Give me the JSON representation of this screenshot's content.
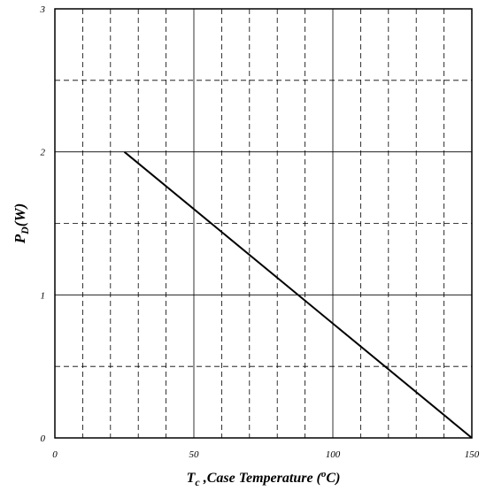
{
  "chart_data": {
    "type": "line",
    "xlabel": {
      "main": "T",
      "sub": "c",
      "rest": " ,Case Temperature (",
      "sup": "o",
      "end": "C)"
    },
    "ylabel": {
      "main": "P",
      "sub": "D",
      "rest": "(W)"
    },
    "xlim": [
      0,
      150
    ],
    "ylim": [
      0,
      3
    ],
    "x_major_ticks": [
      0,
      50,
      100,
      150
    ],
    "y_major_ticks": [
      0,
      1,
      2,
      3
    ],
    "x_tick_labels": [
      "0",
      "50",
      "100",
      "150"
    ],
    "y_tick_labels": [
      "0",
      "1",
      "2",
      "3"
    ],
    "x_minor_step": 10,
    "y_minor_step": 0.5,
    "grid": true,
    "legend": "none",
    "series": [
      {
        "x": [
          25,
          150
        ],
        "y": [
          2,
          0
        ],
        "color": "#000000"
      }
    ]
  }
}
